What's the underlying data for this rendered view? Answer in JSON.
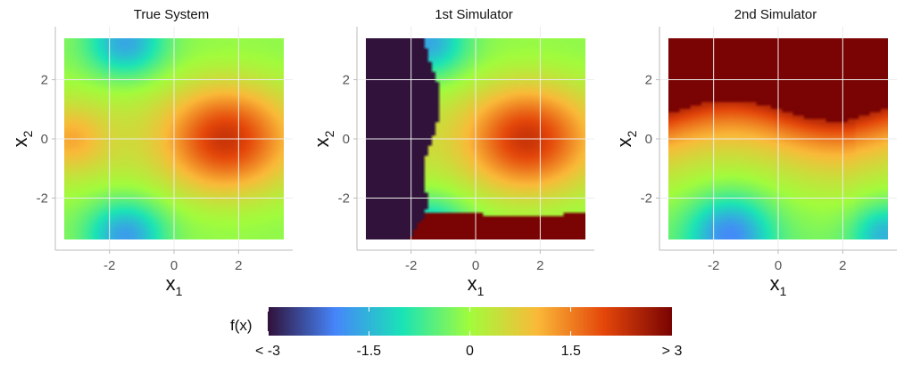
{
  "chart_data": [
    {
      "type": "heatmap",
      "title": "True System",
      "xlabel": "x1",
      "ylabel": "x2",
      "xlim": [
        -3.4,
        3.4
      ],
      "ylim": [
        -3.4,
        3.4
      ],
      "x_ticks": [
        -2,
        0,
        2
      ],
      "y_ticks": [
        -2,
        0,
        2
      ],
      "surface": "true"
    },
    {
      "type": "heatmap",
      "title": "1st Simulator",
      "xlabel": "x1",
      "ylabel": "x2",
      "xlim": [
        -3.4,
        3.4
      ],
      "ylim": [
        -3.4,
        3.4
      ],
      "x_ticks": [
        -2,
        0,
        2
      ],
      "y_ticks": [
        -2,
        0,
        2
      ],
      "surface": "sim1"
    },
    {
      "type": "heatmap",
      "title": "2nd Simulator",
      "xlabel": "x1",
      "ylabel": "x2",
      "xlim": [
        -3.4,
        3.4
      ],
      "ylim": [
        -3.4,
        3.4
      ],
      "x_ticks": [
        -2,
        0,
        2
      ],
      "y_ticks": [
        -2,
        0,
        2
      ],
      "surface": "sim2"
    }
  ],
  "legend": {
    "title": "f(x)",
    "range": [
      -3,
      3
    ],
    "tick_labels": [
      "< -3",
      "-1.5",
      "0",
      "1.5",
      "> 3"
    ],
    "tick_values": [
      -3,
      -1.5,
      0,
      1.5,
      3
    ]
  },
  "colors": {
    "colormap": [
      "#30123b",
      "#4686fb",
      "#1ae4b6",
      "#a2fc3c",
      "#faba39",
      "#e4460a",
      "#7a0403"
    ],
    "background": "#ffffff"
  }
}
